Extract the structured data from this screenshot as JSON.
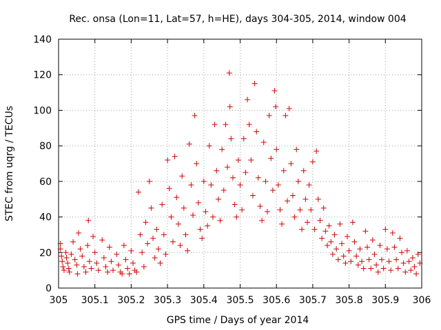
{
  "chart_data": {
    "type": "scatter",
    "title": "Rec. onsa (Lon=11, Lat=57, h=HE), days 304-305, 2014, window 004",
    "xlabel": "GPS time / Days of year 2014",
    "ylabel": "STEC from uqrg / TECUs",
    "xlim": [
      305,
      306
    ],
    "ylim": [
      0,
      140
    ],
    "xticks": [
      305,
      305.1,
      305.2,
      305.3,
      305.4,
      305.5,
      305.6,
      305.7,
      305.8,
      305.9,
      306
    ],
    "xtick_labels": [
      "305",
      "305.1",
      "305.2",
      "305.3",
      "305.4",
      "305.5",
      "305.6",
      "305.7",
      "305.8",
      "305.9",
      "306"
    ],
    "yticks": [
      0,
      20,
      40,
      60,
      80,
      100,
      120,
      140
    ],
    "ytick_labels": [
      "0",
      "20",
      "40",
      "60",
      "80",
      "100",
      "120",
      "140"
    ],
    "grid": true,
    "marker": "+",
    "color": "#d00000",
    "series": [
      {
        "name": "STEC",
        "points": [
          [
            305.005,
            25
          ],
          [
            305.005,
            22
          ],
          [
            305.008,
            18
          ],
          [
            305.01,
            15
          ],
          [
            305.012,
            12
          ],
          [
            305.015,
            10
          ],
          [
            305.02,
            20
          ],
          [
            305.022,
            17
          ],
          [
            305.025,
            14
          ],
          [
            305.028,
            11
          ],
          [
            305.03,
            9
          ],
          [
            305.035,
            19
          ],
          [
            305.04,
            26
          ],
          [
            305.045,
            16
          ],
          [
            305.05,
            13
          ],
          [
            305.052,
            8
          ],
          [
            305.055,
            31
          ],
          [
            305.06,
            22
          ],
          [
            305.065,
            18
          ],
          [
            305.07,
            12
          ],
          [
            305.075,
            9
          ],
          [
            305.08,
            24
          ],
          [
            305.085,
            15
          ],
          [
            305.09,
            11
          ],
          [
            305.082,
            38
          ],
          [
            305.095,
            29
          ],
          [
            305.1,
            20
          ],
          [
            305.105,
            14
          ],
          [
            305.11,
            10
          ],
          [
            305.12,
            27
          ],
          [
            305.125,
            17
          ],
          [
            305.13,
            12
          ],
          [
            305.135,
            9
          ],
          [
            305.14,
            23
          ],
          [
            305.145,
            15
          ],
          [
            305.15,
            10
          ],
          [
            305.16,
            19
          ],
          [
            305.165,
            13
          ],
          [
            305.17,
            9
          ],
          [
            305.175,
            8
          ],
          [
            305.18,
            24
          ],
          [
            305.185,
            16
          ],
          [
            305.19,
            11
          ],
          [
            305.195,
            8
          ],
          [
            305.2,
            21
          ],
          [
            305.205,
            14
          ],
          [
            305.21,
            10
          ],
          [
            305.215,
            9
          ],
          [
            305.22,
            54
          ],
          [
            305.225,
            30
          ],
          [
            305.23,
            20
          ],
          [
            305.235,
            12
          ],
          [
            305.24,
            37
          ],
          [
            305.245,
            25
          ],
          [
            305.25,
            60
          ],
          [
            305.255,
            45
          ],
          [
            305.26,
            28
          ],
          [
            305.265,
            17
          ],
          [
            305.27,
            33
          ],
          [
            305.275,
            22
          ],
          [
            305.28,
            14
          ],
          [
            305.285,
            47
          ],
          [
            305.29,
            30
          ],
          [
            305.295,
            19
          ],
          [
            305.3,
            72
          ],
          [
            305.305,
            56
          ],
          [
            305.31,
            40
          ],
          [
            305.315,
            26
          ],
          [
            305.32,
            74
          ],
          [
            305.325,
            51
          ],
          [
            305.33,
            36
          ],
          [
            305.335,
            24
          ],
          [
            305.34,
            63
          ],
          [
            305.345,
            45
          ],
          [
            305.35,
            30
          ],
          [
            305.355,
            21
          ],
          [
            305.36,
            81
          ],
          [
            305.365,
            58
          ],
          [
            305.37,
            41
          ],
          [
            305.375,
            97
          ],
          [
            305.38,
            70
          ],
          [
            305.385,
            48
          ],
          [
            305.39,
            33
          ],
          [
            305.395,
            28
          ],
          [
            305.4,
            60
          ],
          [
            305.405,
            43
          ],
          [
            305.41,
            35
          ],
          [
            305.415,
            80
          ],
          [
            305.42,
            58
          ],
          [
            305.425,
            40
          ],
          [
            305.43,
            92
          ],
          [
            305.435,
            66
          ],
          [
            305.44,
            50
          ],
          [
            305.445,
            38
          ],
          [
            305.45,
            78
          ],
          [
            305.455,
            55
          ],
          [
            305.46,
            92
          ],
          [
            305.465,
            68
          ],
          [
            305.47,
            121
          ],
          [
            305.472,
            102
          ],
          [
            305.475,
            84
          ],
          [
            305.48,
            62
          ],
          [
            305.485,
            47
          ],
          [
            305.49,
            40
          ],
          [
            305.495,
            72
          ],
          [
            305.5,
            58
          ],
          [
            305.505,
            44
          ],
          [
            305.51,
            84
          ],
          [
            305.515,
            65
          ],
          [
            305.52,
            106
          ],
          [
            305.525,
            92
          ],
          [
            305.53,
            72
          ],
          [
            305.535,
            52
          ],
          [
            305.54,
            115
          ],
          [
            305.545,
            88
          ],
          [
            305.55,
            62
          ],
          [
            305.555,
            46
          ],
          [
            305.56,
            38
          ],
          [
            305.565,
            82
          ],
          [
            305.57,
            60
          ],
          [
            305.575,
            43
          ],
          [
            305.58,
            97
          ],
          [
            305.585,
            73
          ],
          [
            305.59,
            55
          ],
          [
            305.595,
            111
          ],
          [
            305.598,
            102
          ],
          [
            305.6,
            78
          ],
          [
            305.605,
            58
          ],
          [
            305.61,
            44
          ],
          [
            305.615,
            36
          ],
          [
            305.62,
            66
          ],
          [
            305.625,
            97
          ],
          [
            305.63,
            49
          ],
          [
            305.635,
            101
          ],
          [
            305.64,
            70
          ],
          [
            305.645,
            52
          ],
          [
            305.65,
            40
          ],
          [
            305.655,
            78
          ],
          [
            305.66,
            60
          ],
          [
            305.665,
            44
          ],
          [
            305.67,
            33
          ],
          [
            305.675,
            66
          ],
          [
            305.68,
            50
          ],
          [
            305.685,
            37
          ],
          [
            305.69,
            58
          ],
          [
            305.695,
            44
          ],
          [
            305.7,
            71
          ],
          [
            305.705,
            33
          ],
          [
            305.71,
            77
          ],
          [
            305.715,
            50
          ],
          [
            305.72,
            38
          ],
          [
            305.725,
            28
          ],
          [
            305.73,
            45
          ],
          [
            305.735,
            32
          ],
          [
            305.74,
            24
          ],
          [
            305.745,
            35
          ],
          [
            305.75,
            26
          ],
          [
            305.755,
            19
          ],
          [
            305.76,
            30
          ],
          [
            305.765,
            22
          ],
          [
            305.77,
            16
          ],
          [
            305.775,
            36
          ],
          [
            305.78,
            25
          ],
          [
            305.785,
            18
          ],
          [
            305.79,
            14
          ],
          [
            305.795,
            29
          ],
          [
            305.8,
            21
          ],
          [
            305.805,
            15
          ],
          [
            305.81,
            37
          ],
          [
            305.815,
            26
          ],
          [
            305.82,
            18
          ],
          [
            305.825,
            13
          ],
          [
            305.83,
            22
          ],
          [
            305.835,
            15
          ],
          [
            305.84,
            11
          ],
          [
            305.845,
            32
          ],
          [
            305.85,
            23
          ],
          [
            305.855,
            16
          ],
          [
            305.86,
            11
          ],
          [
            305.865,
            27
          ],
          [
            305.87,
            19
          ],
          [
            305.875,
            13
          ],
          [
            305.88,
            9
          ],
          [
            305.885,
            24
          ],
          [
            305.89,
            16
          ],
          [
            305.895,
            11
          ],
          [
            305.9,
            33
          ],
          [
            305.905,
            22
          ],
          [
            305.91,
            15
          ],
          [
            305.915,
            10
          ],
          [
            305.92,
            31
          ],
          [
            305.925,
            23
          ],
          [
            305.93,
            16
          ],
          [
            305.935,
            11
          ],
          [
            305.94,
            28
          ],
          [
            305.945,
            20
          ],
          [
            305.95,
            14
          ],
          [
            305.955,
            9
          ],
          [
            305.96,
            21
          ],
          [
            305.965,
            15
          ],
          [
            305.97,
            10
          ],
          [
            305.975,
            17
          ],
          [
            305.98,
            12
          ],
          [
            305.985,
            8
          ],
          [
            305.99,
            19
          ],
          [
            305.995,
            14
          ]
        ]
      }
    ]
  }
}
